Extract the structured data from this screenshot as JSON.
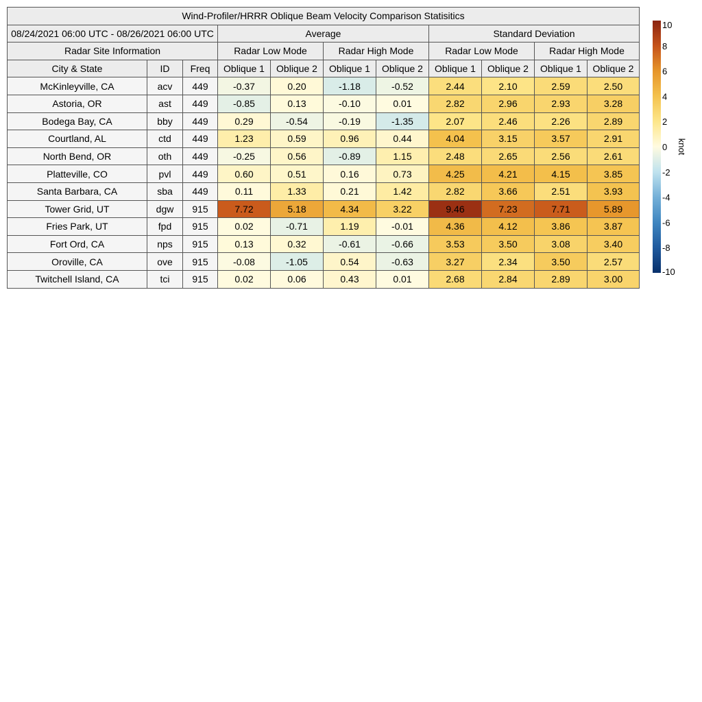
{
  "chart_data": {
    "type": "table",
    "title": "Wind-Profiler/HRRR Oblique Beam Velocity Comparison Statisitics",
    "period": "08/24/2021 06:00 UTC - 08/26/2021 06:00 UTC",
    "group_average": "Average",
    "group_std": "Standard Deviation",
    "site_info_label": "Radar Site Information",
    "mode_low": "Radar Low Mode",
    "mode_high": "Radar High Mode",
    "col_city": "City & State",
    "col_id": "ID",
    "col_freq": "Freq",
    "col_oblique1": "Oblique 1",
    "col_oblique2": "Oblique 2",
    "rows": [
      {
        "city": "McKinleyville, CA",
        "id": "acv",
        "freq": "449",
        "avg": [
          "-0.37",
          "0.20",
          "-1.18",
          "-0.52"
        ],
        "std": [
          "2.44",
          "2.10",
          "2.59",
          "2.50"
        ]
      },
      {
        "city": "Astoria, OR",
        "id": "ast",
        "freq": "449",
        "avg": [
          "-0.85",
          "0.13",
          "-0.10",
          "0.01"
        ],
        "std": [
          "2.82",
          "2.96",
          "2.93",
          "3.28"
        ]
      },
      {
        "city": "Bodega Bay, CA",
        "id": "bby",
        "freq": "449",
        "avg": [
          "0.29",
          "-0.54",
          "-0.19",
          "-1.35"
        ],
        "std": [
          "2.07",
          "2.46",
          "2.26",
          "2.89"
        ]
      },
      {
        "city": "Courtland, AL",
        "id": "ctd",
        "freq": "449",
        "avg": [
          "1.23",
          "0.59",
          "0.96",
          "0.44"
        ],
        "std": [
          "4.04",
          "3.15",
          "3.57",
          "2.91"
        ]
      },
      {
        "city": "North Bend, OR",
        "id": "oth",
        "freq": "449",
        "avg": [
          "-0.25",
          "0.56",
          "-0.89",
          "1.15"
        ],
        "std": [
          "2.48",
          "2.65",
          "2.56",
          "2.61"
        ]
      },
      {
        "city": "Platteville, CO",
        "id": "pvl",
        "freq": "449",
        "avg": [
          "0.60",
          "0.51",
          "0.16",
          "0.73"
        ],
        "std": [
          "4.25",
          "4.21",
          "4.15",
          "3.85"
        ]
      },
      {
        "city": "Santa Barbara, CA",
        "id": "sba",
        "freq": "449",
        "avg": [
          "0.11",
          "1.33",
          "0.21",
          "1.42"
        ],
        "std": [
          "2.82",
          "3.66",
          "2.51",
          "3.93"
        ]
      },
      {
        "city": "Tower Grid, UT",
        "id": "dgw",
        "freq": "915",
        "avg": [
          "7.72",
          "5.18",
          "4.34",
          "3.22"
        ],
        "std": [
          "9.46",
          "7.23",
          "7.71",
          "5.89"
        ]
      },
      {
        "city": "Fries Park, UT",
        "id": "fpd",
        "freq": "915",
        "avg": [
          "0.02",
          "-0.71",
          "1.19",
          "-0.01"
        ],
        "std": [
          "4.36",
          "4.12",
          "3.86",
          "3.87"
        ]
      },
      {
        "city": "Fort Ord, CA",
        "id": "nps",
        "freq": "915",
        "avg": [
          "0.13",
          "0.32",
          "-0.61",
          "-0.66"
        ],
        "std": [
          "3.53",
          "3.50",
          "3.08",
          "3.40"
        ]
      },
      {
        "city": "Oroville, CA",
        "id": "ove",
        "freq": "915",
        "avg": [
          "-0.08",
          "-1.05",
          "0.54",
          "-0.63"
        ],
        "std": [
          "3.27",
          "2.34",
          "3.50",
          "2.57"
        ]
      },
      {
        "city": "Twitchell Island, CA",
        "id": "tci",
        "freq": "915",
        "avg": [
          "0.02",
          "0.06",
          "0.43",
          "0.01"
        ],
        "std": [
          "2.68",
          "2.84",
          "2.89",
          "3.00"
        ]
      }
    ],
    "colorbar": {
      "label": "knot",
      "range": [
        -10,
        10
      ],
      "ticks": [
        -10,
        -8,
        -6,
        -4,
        -2,
        0,
        2,
        4,
        6,
        8,
        10
      ],
      "stops": [
        {
          "v": -10,
          "color": "#08306b"
        },
        {
          "v": -8,
          "color": "#1f5a9e"
        },
        {
          "v": -6,
          "color": "#3f86c0"
        },
        {
          "v": -4,
          "color": "#74b0d8"
        },
        {
          "v": -2,
          "color": "#bfe2ee"
        },
        {
          "v": 0,
          "color": "#fffbe0"
        },
        {
          "v": 2,
          "color": "#fde68a"
        },
        {
          "v": 4,
          "color": "#f4c24e"
        },
        {
          "v": 6,
          "color": "#e6952a"
        },
        {
          "v": 8,
          "color": "#c5521a"
        },
        {
          "v": 10,
          "color": "#8b2310"
        }
      ]
    }
  }
}
